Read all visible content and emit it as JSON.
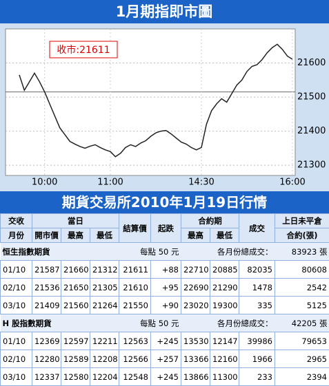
{
  "chart_data": {
    "type": "line",
    "title": "1月期指即市圖",
    "annotation": "收市:21611",
    "categories": [
      null,
      null,
      null,
      null,
      null,
      "10:00",
      null,
      null,
      null,
      null,
      null,
      null,
      null,
      null,
      null,
      null,
      null,
      null,
      "11:00",
      null,
      null,
      null,
      null,
      null,
      null,
      null,
      null,
      null,
      null,
      null,
      null,
      null,
      null,
      null,
      null,
      null,
      "14:30",
      null,
      null,
      null,
      null,
      null,
      null,
      null,
      null,
      null,
      null,
      null,
      null,
      null,
      null,
      null,
      null,
      null,
      "16:00"
    ],
    "values": [
      21565,
      21520,
      21545,
      21570,
      21545,
      21515,
      21480,
      21445,
      21410,
      21390,
      21370,
      21362,
      21355,
      21350,
      21356,
      21360,
      21352,
      21345,
      21340,
      21325,
      21335,
      21352,
      21360,
      21355,
      21365,
      21372,
      21385,
      21395,
      21400,
      21402,
      21392,
      21380,
      21368,
      21362,
      21352,
      21345,
      21352,
      21420,
      21460,
      21480,
      21495,
      21485,
      21510,
      21535,
      21550,
      21575,
      21590,
      21595,
      21610,
      21630,
      21645,
      21655,
      21640,
      21620,
      21611
    ],
    "color": "#222222",
    "ylim": [
      21270,
      21700
    ],
    "yticks": [
      21300,
      21400,
      21500,
      21600
    ],
    "reference_line": 21515,
    "grid": true
  },
  "table": {
    "title": "期貨交易所2010年1月19日行情",
    "header_top": [
      "交收",
      "當日",
      "結算價",
      "起跌",
      "合約期",
      "成交",
      "上日未平倉"
    ],
    "header_sub": [
      "月份",
      "開市價",
      "最高",
      "最低",
      "最高",
      "最低",
      "合約(張)"
    ],
    "sections": [
      {
        "title": "恒生指數期貨",
        "unit": "每點 50 元",
        "total_label": "各月份總成交：",
        "total": "83923 張",
        "rows": [
          [
            "01/10",
            "21587",
            "21660",
            "21312",
            "21611",
            "+88",
            "22710",
            "20885",
            "82035",
            "80608"
          ],
          [
            "02/10",
            "21536",
            "21650",
            "21305",
            "21610",
            "+95",
            "22690",
            "21290",
            "1478",
            "2542"
          ],
          [
            "03/10",
            "21409",
            "21560",
            "21264",
            "21550",
            "+90",
            "23020",
            "19300",
            "335",
            "5125"
          ]
        ]
      },
      {
        "title": "H 股指數期貨",
        "unit": "每點 50 元",
        "total_label": "各月份總成交：",
        "total": "42205 張",
        "rows": [
          [
            "01/10",
            "12369",
            "12597",
            "12211",
            "12563",
            "+245",
            "13530",
            "12147",
            "39986",
            "79653"
          ],
          [
            "02/10",
            "12280",
            "12589",
            "12208",
            "12566",
            "+257",
            "13366",
            "12160",
            "1966",
            "2965"
          ],
          [
            "03/10",
            "12337",
            "12580",
            "12204",
            "12548",
            "+245",
            "13866",
            "11300",
            "233",
            "2394"
          ]
        ]
      }
    ]
  }
}
